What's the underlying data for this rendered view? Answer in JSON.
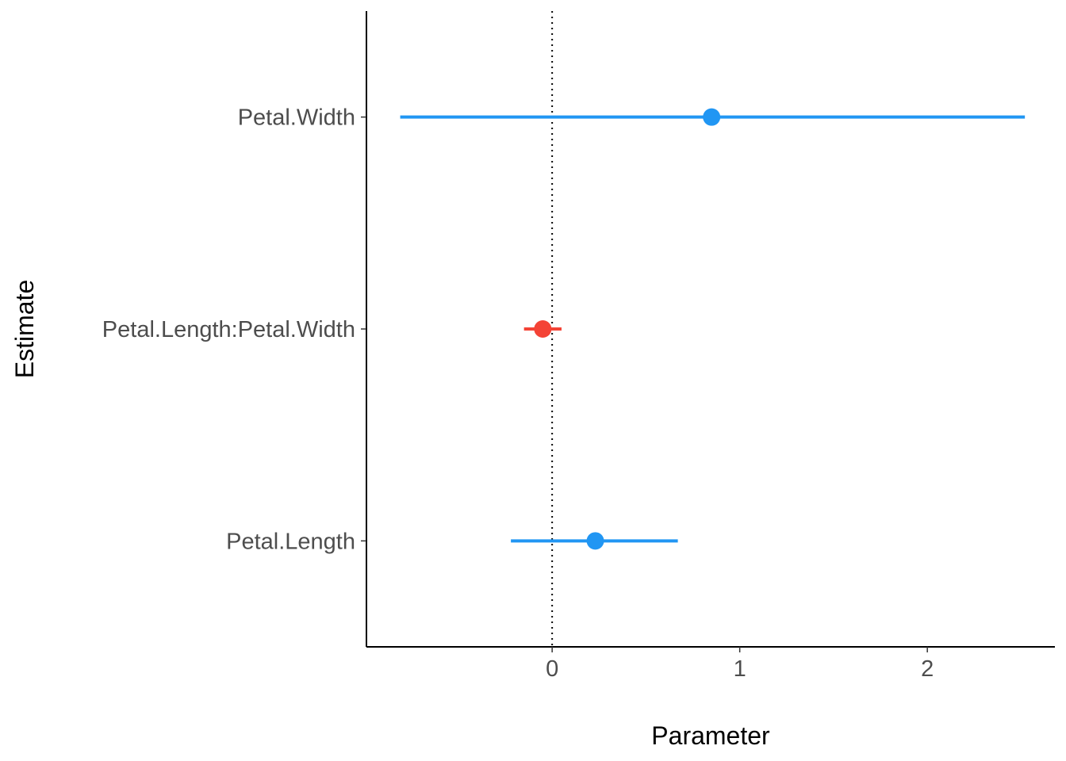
{
  "chart_data": {
    "type": "forest",
    "xlabel": "Parameter",
    "ylabel": "Estimate",
    "xlim": [
      -0.99,
      2.68
    ],
    "x_ticks": [
      0,
      1,
      2
    ],
    "x_tick_labels": [
      "0",
      "1",
      "2"
    ],
    "reference_line": 0,
    "grid": false,
    "legend": "none",
    "categories": [
      "Petal.Width",
      "Petal.Length:Petal.Width",
      "Petal.Length"
    ],
    "points": [
      {
        "label": "Petal.Width",
        "estimate": 0.85,
        "lower": -0.81,
        "upper": 2.52,
        "color": "#2196f3"
      },
      {
        "label": "Petal.Length:Petal.Width",
        "estimate": -0.05,
        "lower": -0.15,
        "upper": 0.05,
        "color": "#f44336"
      },
      {
        "label": "Petal.Length",
        "estimate": 0.23,
        "lower": -0.22,
        "upper": 0.67,
        "color": "#2196f3"
      }
    ]
  }
}
